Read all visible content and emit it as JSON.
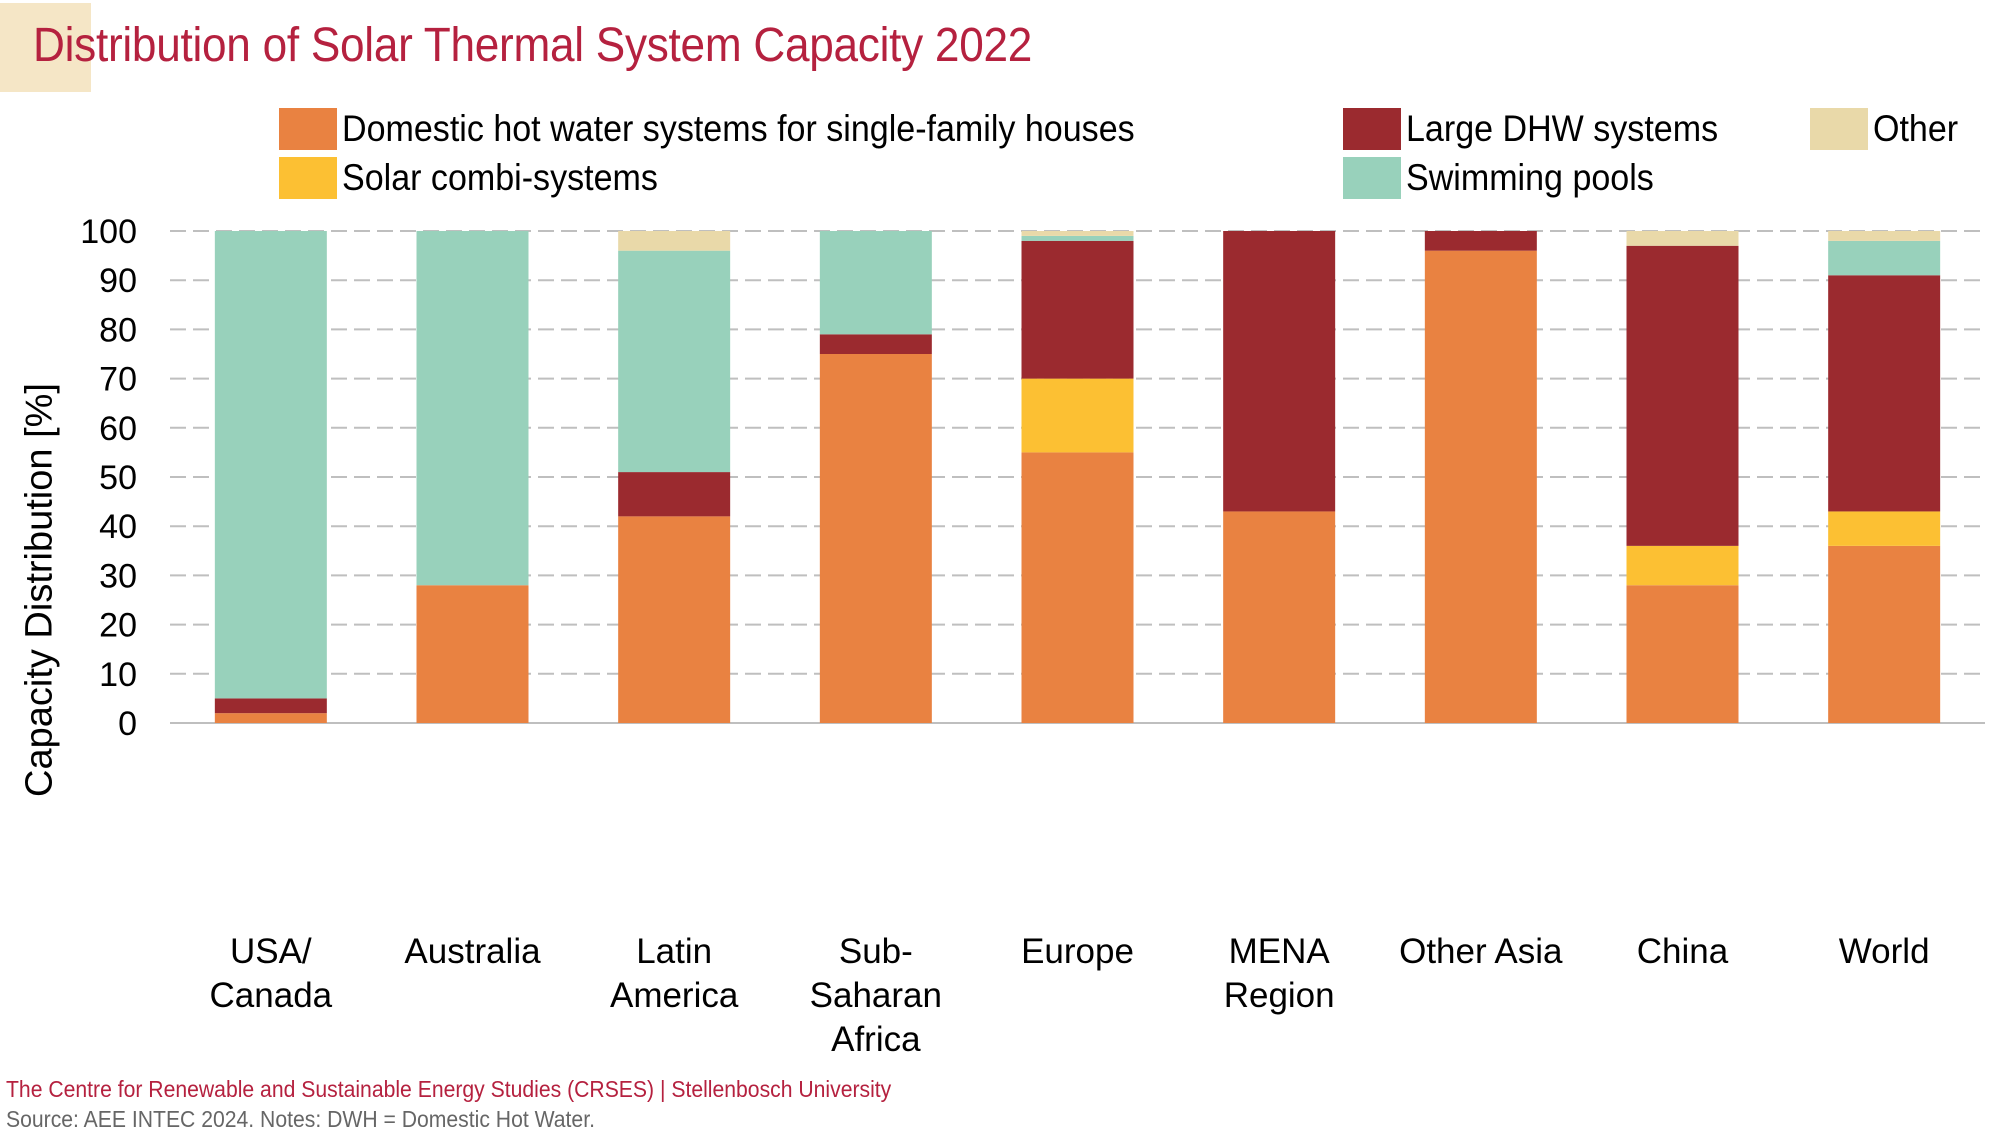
{
  "header": {
    "title": "Distribution of Solar Thermal System Capacity 2022"
  },
  "footer": {
    "credit": "The Centre for Renewable and Sustainable Energy Studies (CRSES) | Stellenbosch University",
    "source": "Source: AEE INTEC 2024. Notes: DWH = Domestic Hot Water."
  },
  "colors": {
    "title": "#b5213f",
    "accent_block": "#f5e6c6",
    "grid": "#bfbfbf"
  },
  "chart_data": {
    "type": "bar",
    "stacked": true,
    "title": "Distribution of Solar Thermal System Capacity 2022",
    "xlabel": "",
    "ylabel": "Capacity Distribution [%]",
    "ylim": [
      0,
      100
    ],
    "yticks": [
      0,
      10,
      20,
      30,
      40,
      50,
      60,
      70,
      80,
      90,
      100
    ],
    "grid": true,
    "legend_position": "top",
    "categories": [
      [
        "USA/",
        "Canada"
      ],
      [
        "Australia"
      ],
      [
        "Latin",
        "America"
      ],
      [
        "Sub-",
        "Saharan",
        "Africa"
      ],
      [
        "Europe"
      ],
      [
        "MENA",
        "Region"
      ],
      [
        "Other Asia"
      ],
      [
        "China"
      ],
      [
        "World"
      ]
    ],
    "series": [
      {
        "name": "Domestic hot water systems for single-family houses",
        "color": "#e98241",
        "values": [
          2,
          28,
          42,
          75,
          55,
          43,
          96,
          28,
          36
        ]
      },
      {
        "name": "Solar combi-systems",
        "color": "#fcc033",
        "values": [
          0,
          0,
          0,
          0,
          15,
          0,
          0,
          8,
          7
        ]
      },
      {
        "name": "Large DHW systems",
        "color": "#9b2a2f",
        "values": [
          3,
          0,
          9,
          4,
          28,
          57,
          4,
          61,
          48
        ]
      },
      {
        "name": "Swimming pools",
        "color": "#98d1bb",
        "values": [
          95,
          72,
          45,
          21,
          1,
          0,
          0,
          0,
          7
        ]
      },
      {
        "name": "Other",
        "color": "#e9d9a9",
        "values": [
          0,
          0,
          4,
          0,
          1,
          0,
          0,
          3,
          2
        ]
      }
    ]
  }
}
